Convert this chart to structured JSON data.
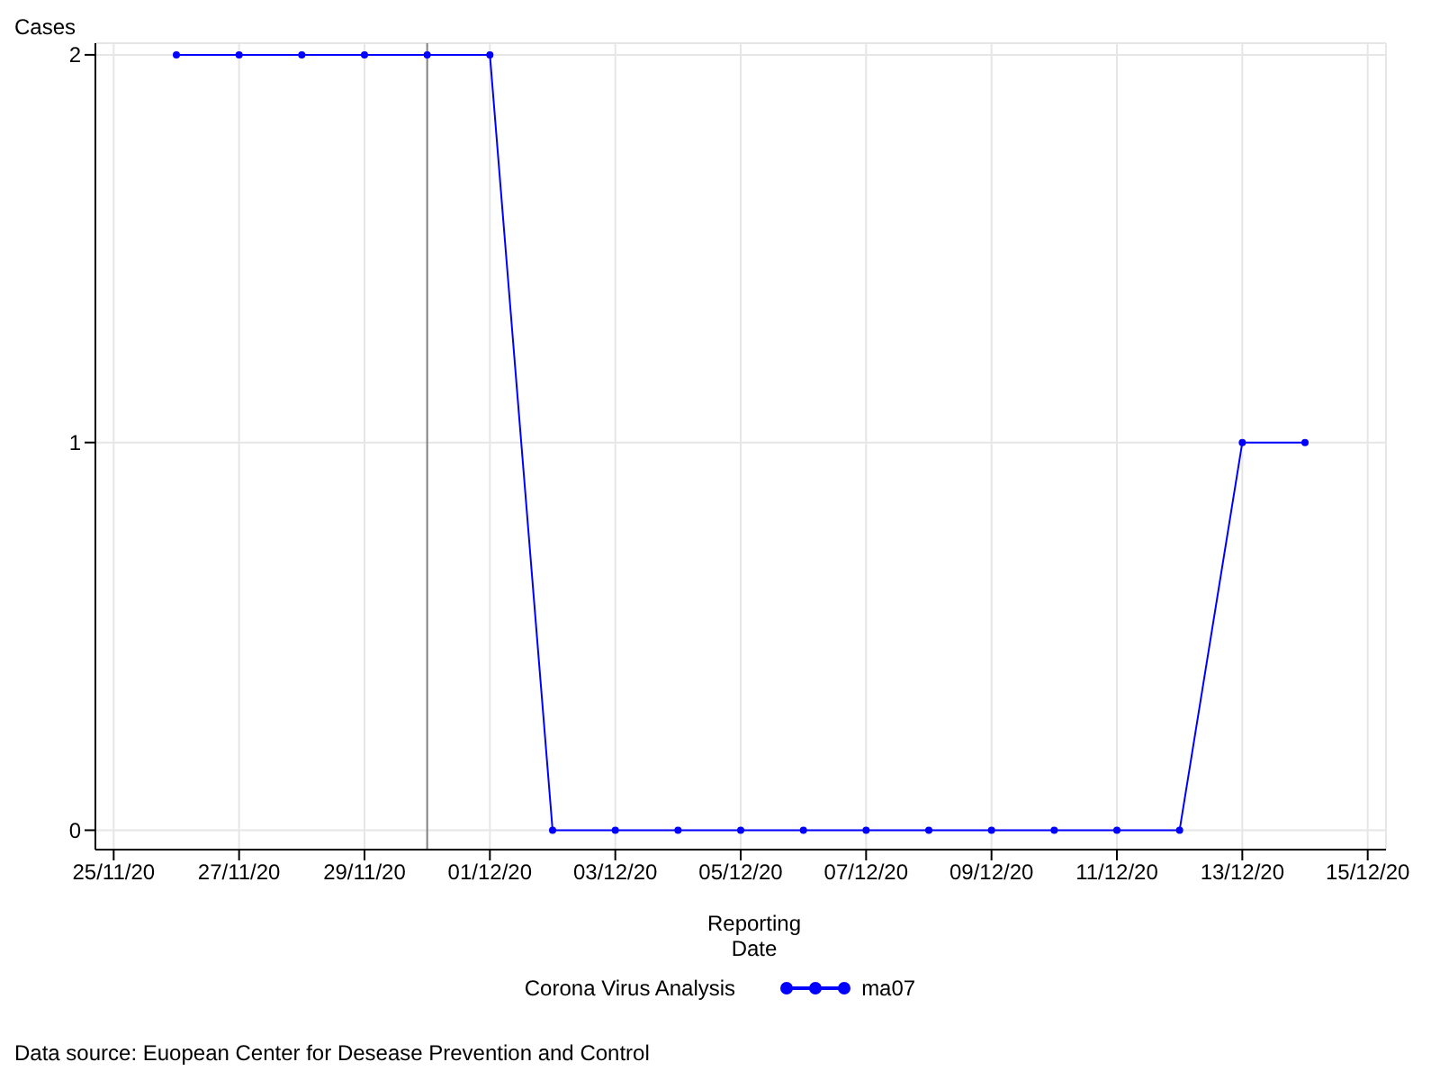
{
  "chart_data": {
    "type": "line",
    "ylabel": "Cases",
    "xlabel": "Reporting Date",
    "legend_title": "Corona Virus Analysis",
    "x": [
      "--11-26",
      "--11-27",
      "--11-28",
      "--11-29",
      "--11-30",
      "--12-01",
      "--12-02",
      "--12-03",
      "--12-04",
      "--12-05",
      "--12-06",
      "--12-07",
      "--12-08",
      "--12-09",
      "--12-10",
      "--12-11",
      "--12-12",
      "--12-13",
      "--12-14"
    ],
    "series": [
      {
        "name": "ma07",
        "color": "#0000ff",
        "values": [
          2,
          2,
          2,
          2,
          2,
          2,
          0,
          0,
          0,
          0,
          0,
          0,
          0,
          0,
          0,
          0,
          0,
          1,
          1
        ]
      }
    ],
    "xlim": [
      "--11-24T17:00",
      "--12-15T07:00"
    ],
    "xticks": [
      {
        "value": "--11-25",
        "label": "25/11/20"
      },
      {
        "value": "--11-27",
        "label": "27/11/20"
      },
      {
        "value": "--11-29",
        "label": "29/11/20"
      },
      {
        "value": "--12-01",
        "label": "01/12/20"
      },
      {
        "value": "--12-03",
        "label": "03/12/20"
      },
      {
        "value": "--12-05",
        "label": "05/12/20"
      },
      {
        "value": "--12-07",
        "label": "07/12/20"
      },
      {
        "value": "--12-09",
        "label": "09/12/20"
      },
      {
        "value": "--12-11",
        "label": "11/12/20"
      },
      {
        "value": "--12-13",
        "label": "13/12/20"
      },
      {
        "value": "--12-15",
        "label": "15/12/20"
      }
    ],
    "ylim": [
      -0.05,
      2.03
    ],
    "yticks": [
      0,
      1,
      2
    ],
    "grid": true,
    "marker": "circle",
    "line_style": "solid",
    "legend": "bottom",
    "ref_lines": [
      {
        "axis": "x",
        "value": "--11-30",
        "color": "#808080"
      }
    ],
    "annotations": [
      "Data source: Euopean Center for Desease Prevention and Control"
    ]
  }
}
